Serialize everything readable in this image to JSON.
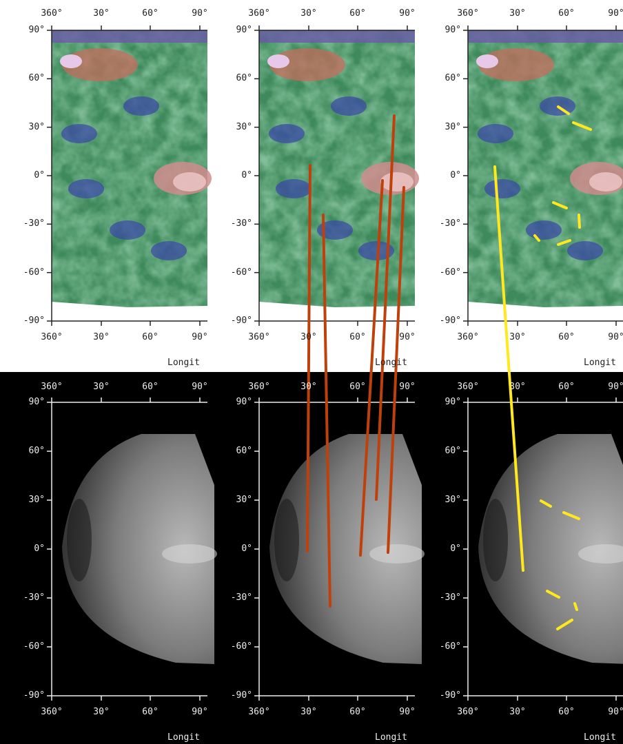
{
  "x_ticks": [
    "360°",
    "30°",
    "60°",
    "90°"
  ],
  "y_ticks": [
    "90°",
    "60°",
    "30°",
    "0°",
    "-30°",
    "-60°",
    "-90°"
  ],
  "x_axis_label": "Longit",
  "colors": {
    "top_background": "#ffffff",
    "bottom_background": "#000000",
    "orange_line": "#c0400c",
    "yellow_line": "#ffe81e",
    "top_axis": "#222222",
    "bottom_axis": "#eeeeee"
  },
  "panels": [
    {
      "name": "topographic-map-plain",
      "row": "top",
      "overlay": "none"
    },
    {
      "name": "topographic-map-orange-lines",
      "row": "top",
      "overlay": "orange"
    },
    {
      "name": "topographic-map-yellow-lines",
      "row": "top",
      "overlay": "yellow"
    },
    {
      "name": "cloud-image-plain",
      "row": "bottom",
      "overlay": "none"
    },
    {
      "name": "cloud-image-orange-lines",
      "row": "bottom",
      "overlay": "orange"
    },
    {
      "name": "cloud-image-yellow-lines",
      "row": "bottom",
      "overlay": "yellow"
    }
  ]
}
